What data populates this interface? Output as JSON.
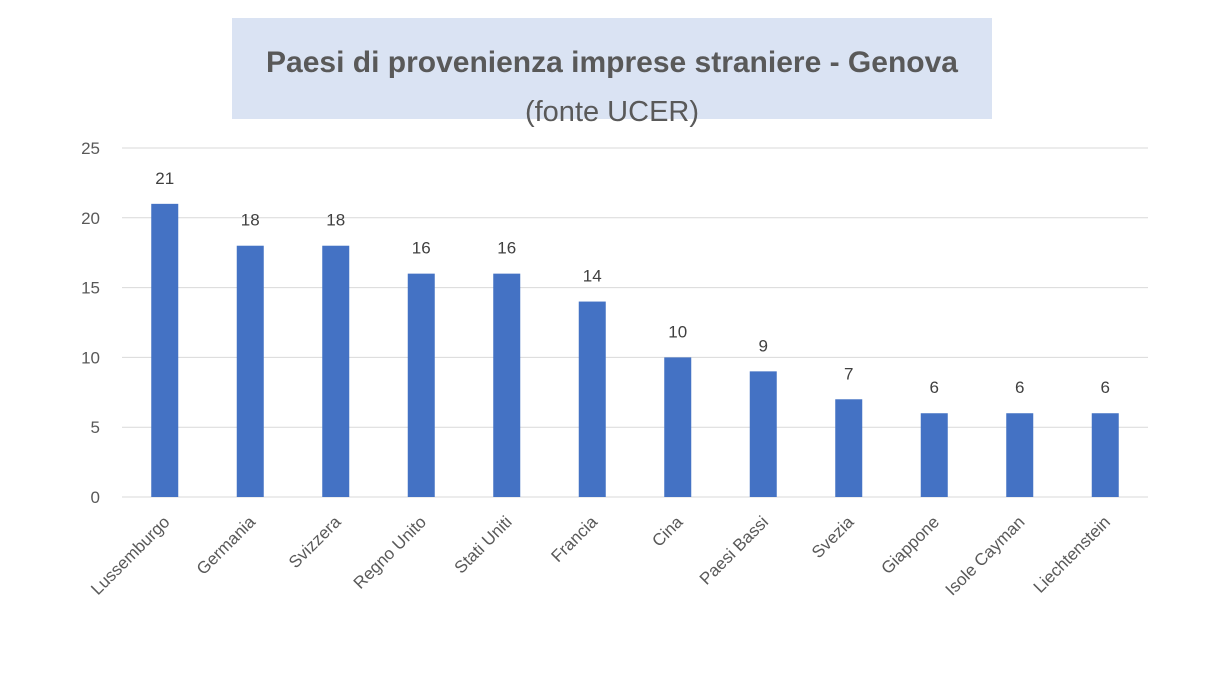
{
  "chart_data": {
    "type": "bar",
    "title": "Paesi di provenienza imprese straniere - Genova",
    "subtitle": "(fonte UCER)",
    "categories": [
      "Lussemburgo",
      "Germania",
      "Svizzera",
      "Regno Unito",
      "Stati Uniti",
      "Francia",
      "Cina",
      "Paesi Bassi",
      "Svezia",
      "Giappone",
      "Isole Cayman",
      "Liechtenstein"
    ],
    "values": [
      21,
      18,
      18,
      16,
      16,
      14,
      10,
      9,
      7,
      6,
      6,
      6
    ],
    "ylim": [
      0,
      25
    ],
    "yticks": [
      0,
      5,
      10,
      15,
      20,
      25
    ],
    "grid": true,
    "bar_color": "#4472c4",
    "grid_color": "#d9d9d9"
  }
}
